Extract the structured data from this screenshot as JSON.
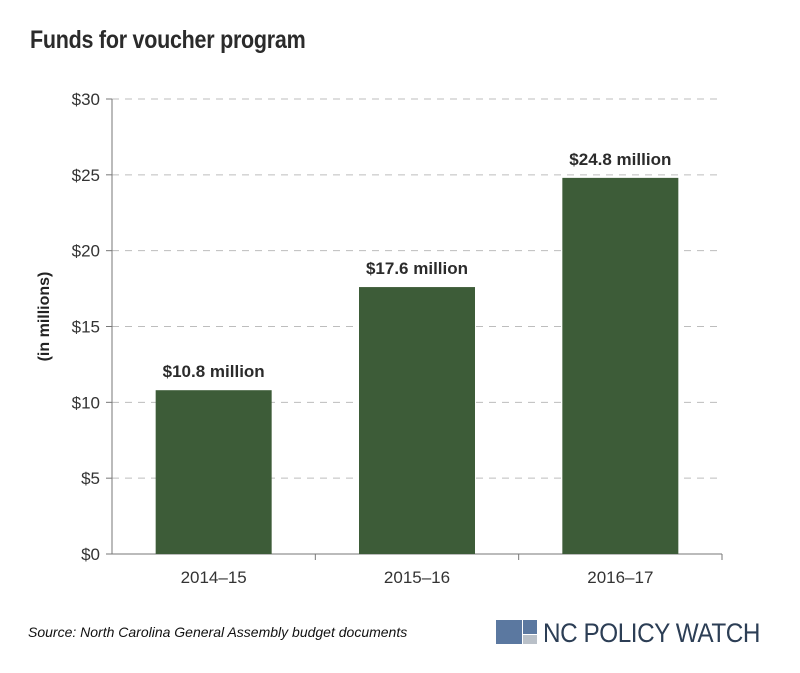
{
  "chart_data": {
    "type": "bar",
    "title": "Funds for voucher program",
    "categories": [
      "2014–15",
      "2015–16",
      "2016–17"
    ],
    "values": [
      10.8,
      17.6,
      24.8
    ],
    "data_labels": [
      "$10.8 million",
      "$17.6 million",
      "$24.8 million"
    ],
    "xlabel": "",
    "ylabel": "(in millions)",
    "ylim": [
      0,
      30
    ],
    "yticks": [
      0,
      5,
      10,
      15,
      20,
      25,
      30
    ],
    "ytick_labels": [
      "$0",
      "$5",
      "$10",
      "$15",
      "$20",
      "$25",
      "$30"
    ],
    "grid": true,
    "bar_color": "#3d5c38"
  },
  "source": "Source: North Carolina General Assembly budget documents",
  "brand": {
    "name": "NC POLICY WATCH",
    "primary_color": "#5b78a0",
    "secondary_color": "#b9c0c8"
  }
}
